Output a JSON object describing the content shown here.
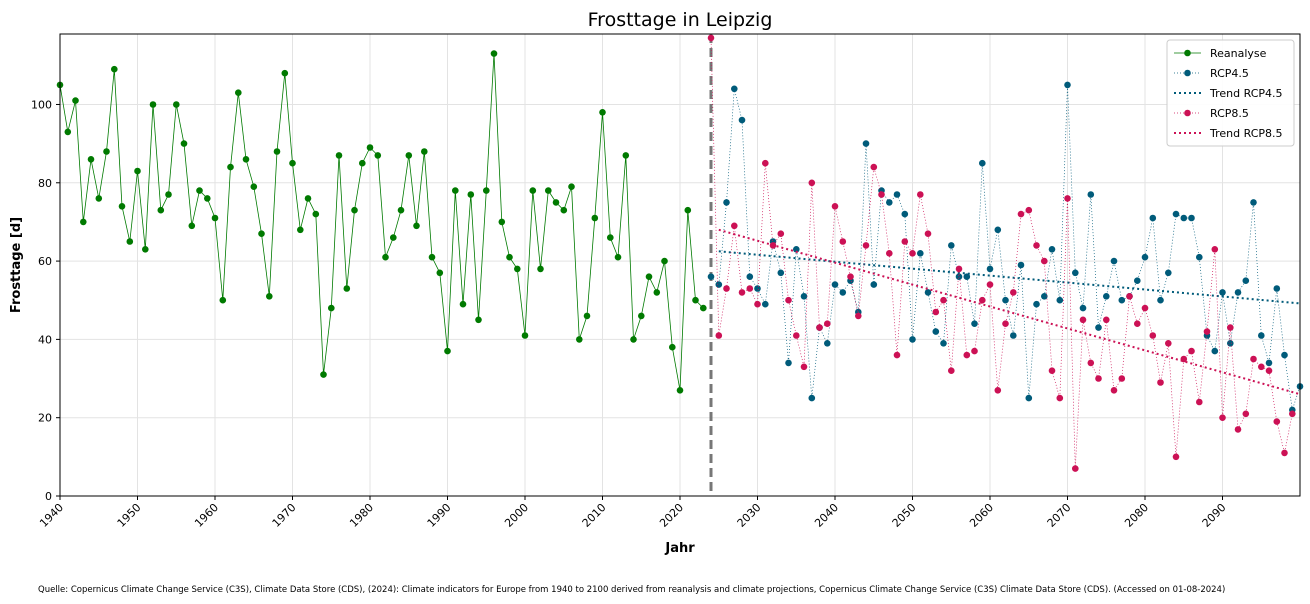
{
  "chart_data": {
    "type": "line",
    "title": "Frosttage in Leipzig",
    "xlabel": "Jahr",
    "ylabel": "Frosttage [d]",
    "xlim": [
      1940,
      2100
    ],
    "ylim": [
      0,
      118
    ],
    "xticks": [
      1940,
      1950,
      1960,
      1970,
      1980,
      1990,
      2000,
      2010,
      2020,
      2030,
      2040,
      2050,
      2060,
      2070,
      2080,
      2090
    ],
    "yticks": [
      0,
      20,
      40,
      60,
      80,
      100
    ],
    "grid": true,
    "legend_position": "top-right",
    "divider_year": 2024,
    "source": "Quelle: Copernicus Climate Change Service (C3S), Climate Data Store (CDS), (2024): Climate indicators for Europe from 1940 to 2100 derived from reanalysis and climate projections, Copernicus Climate Change Service (C3S) Climate Data Store (CDS). (Accessed on 01-08-2024)",
    "series": [
      {
        "name": "Reanalyse",
        "color": "#007a00",
        "style": "solid-marker",
        "start_year": 1940,
        "values": [
          105,
          93,
          101,
          70,
          86,
          76,
          88,
          109,
          74,
          65,
          83,
          63,
          100,
          73,
          77,
          100,
          90,
          69,
          78,
          76,
          71,
          50,
          84,
          103,
          86,
          79,
          67,
          51,
          88,
          108,
          85,
          68,
          76,
          72,
          31,
          48,
          87,
          53,
          73,
          85,
          89,
          87,
          61,
          66,
          73,
          87,
          69,
          88,
          61,
          57,
          37,
          78,
          49,
          77,
          45,
          78,
          113,
          70,
          61,
          58,
          41,
          78,
          58,
          78,
          75,
          73,
          79,
          40,
          46,
          71,
          98,
          66,
          61,
          87,
          40,
          46,
          56,
          52,
          60,
          38,
          27,
          73,
          50,
          48
        ]
      },
      {
        "name": "RCP4.5",
        "color": "#005b7a",
        "style": "dotted-marker",
        "start_year": 2024,
        "values": [
          56,
          54,
          75,
          104,
          96,
          56,
          53,
          49,
          65,
          57,
          34,
          63,
          51,
          25,
          43,
          39,
          54,
          52,
          55,
          47,
          90,
          54,
          78,
          75,
          77,
          72,
          40,
          62,
          52,
          42,
          39,
          64,
          56,
          56,
          44,
          85,
          58,
          68,
          50,
          41,
          59,
          25,
          49,
          51,
          63,
          50,
          105,
          57,
          48,
          77,
          43,
          51,
          60,
          50,
          51,
          55,
          61,
          71,
          50,
          57,
          72,
          71,
          71,
          61,
          41,
          37,
          52,
          39,
          52,
          55,
          75,
          41,
          34,
          53,
          36,
          22,
          28
        ]
      },
      {
        "name": "Trend RCP4.5",
        "color": "#005b7a",
        "style": "dotted-trend",
        "x": [
          2025,
          2100
        ],
        "values": [
          62.5,
          49.2
        ]
      },
      {
        "name": "RCP8.5",
        "color": "#cc1155",
        "style": "dotted-marker",
        "start_year": 2024,
        "values": [
          117,
          41,
          53,
          69,
          52,
          53,
          49,
          85,
          64,
          67,
          50,
          41,
          33,
          80,
          43,
          44,
          74,
          65,
          56,
          46,
          64,
          84,
          77,
          62,
          36,
          65,
          62,
          77,
          67,
          47,
          50,
          32,
          58,
          36,
          37,
          50,
          54,
          27,
          44,
          52,
          72,
          73,
          64,
          60,
          32,
          25,
          76,
          7,
          45,
          34,
          30,
          45,
          27,
          30,
          51,
          44,
          48,
          41,
          29,
          39,
          10,
          35,
          37,
          24,
          42,
          63,
          20,
          43,
          17,
          21,
          35,
          33,
          32,
          19,
          11,
          21
        ]
      },
      {
        "name": "Trend RCP8.5",
        "color": "#cc1155",
        "style": "dotted-trend",
        "x": [
          2025,
          2100
        ],
        "values": [
          68,
          26
        ]
      }
    ]
  }
}
